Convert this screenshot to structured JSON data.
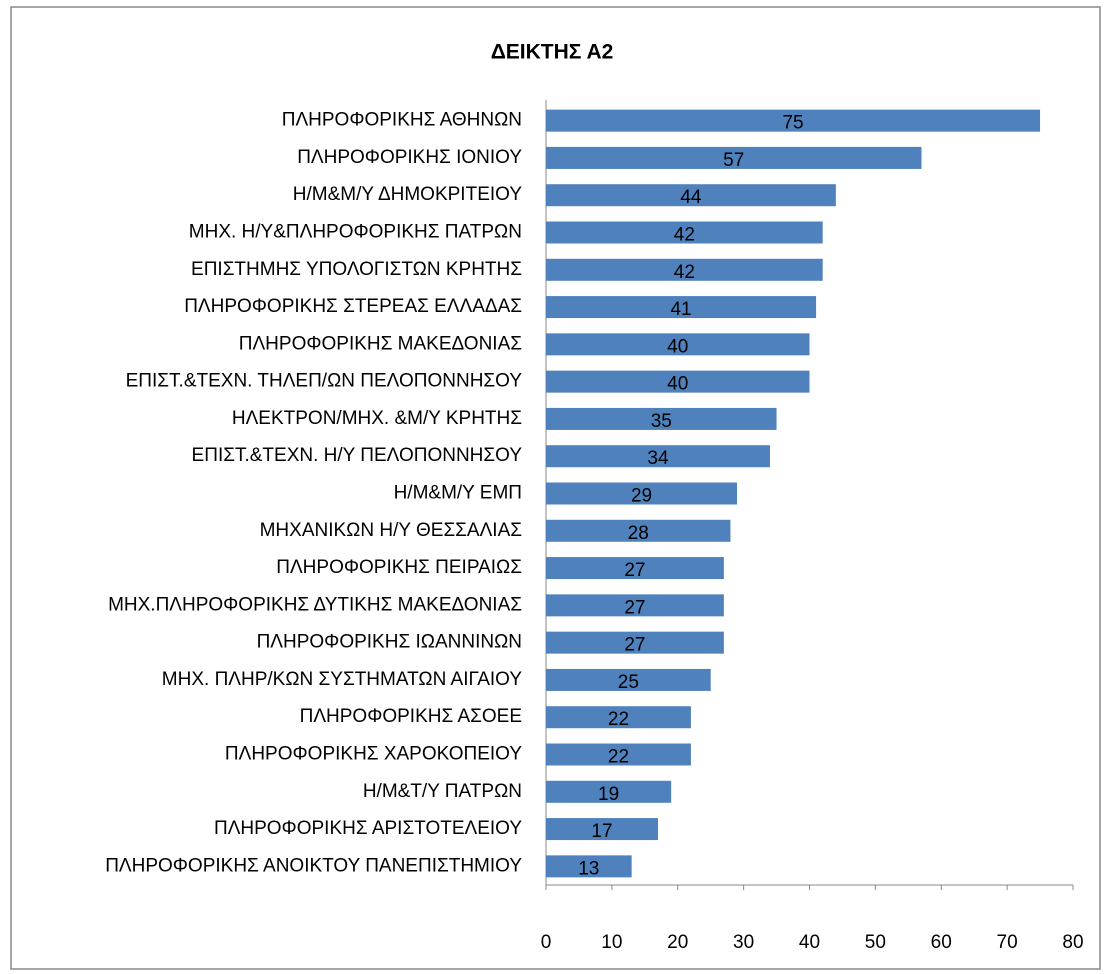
{
  "chart_data": {
    "type": "bar",
    "orientation": "horizontal",
    "title": "ΔΕΙΚΤΗΣ Α2",
    "categories": [
      "ΠΛΗΡΟΦΟΡΙΚΗΣ ΑΘΗΝΩΝ",
      "ΠΛΗΡΟΦΟΡΙΚΗΣ ΙΟΝΙΟΥ",
      "Η/Μ&Μ/Υ ΔΗΜΟΚΡΙΤΕΙΟΥ",
      "ΜΗΧ. Η/Υ&ΠΛΗΡΟΦΟΡΙΚΗΣ ΠΑΤΡΩΝ",
      "ΕΠΙΣΤΗΜΗΣ ΥΠΟΛΟΓΙΣΤΩΝ ΚΡΗΤΗΣ",
      "ΠΛΗΡΟΦΟΡΙΚΗΣ ΣΤΕΡΕΑΣ ΕΛΛΑΔΑΣ",
      "ΠΛΗΡΟΦΟΡΙΚΗΣ ΜΑΚΕΔΟΝΙΑΣ",
      "ΕΠΙΣΤ.&ΤΕΧΝ. ΤΗΛΕΠ/ΩΝ ΠΕΛΟΠΟΝΝΗΣΟΥ",
      "ΗΛΕΚΤΡΟΝ/ΜΗΧ. &Μ/Υ ΚΡΗΤΗΣ",
      "ΕΠΙΣΤ.&ΤΕΧΝ. Η/Υ ΠΕΛΟΠΟΝΝΗΣΟΥ",
      "Η/Μ&Μ/Υ ΕΜΠ",
      "ΜΗΧΑΝΙΚΩΝ Η/Υ ΘΕΣΣΑΛΙΑΣ",
      "ΠΛΗΡΟΦΟΡΙΚΗΣ ΠΕΙΡΑΙΩΣ",
      "ΜΗΧ.ΠΛΗΡΟΦΟΡΙΚΗΣ ΔΥΤΙΚΗΣ ΜΑΚΕΔΟΝΙΑΣ",
      "ΠΛΗΡΟΦΟΡΙΚΗΣ ΙΩΑΝΝΙΝΩΝ",
      "ΜΗΧ. ΠΛΗΡ/ΚΩΝ ΣΥΣΤΗΜΑΤΩΝ ΑΙΓΑΙΟΥ",
      "ΠΛΗΡΟΦΟΡΙΚΗΣ ΑΣΟΕΕ",
      "ΠΛΗΡΟΦΟΡΙΚΗΣ ΧΑΡΟΚΟΠΕΙΟΥ",
      "Η/Μ&Τ/Υ ΠΑΤΡΩΝ",
      "ΠΛΗΡΟΦΟΡΙΚΗΣ ΑΡΙΣΤΟΤΕΛΕΙΟΥ",
      "ΠΛΗΡΟΦΟΡΙΚΗΣ ΑΝΟΙΚΤΟΥ ΠΑΝΕΠΙΣΤΗΜΙΟΥ"
    ],
    "values": [
      75,
      57,
      44,
      42,
      42,
      41,
      40,
      40,
      35,
      34,
      29,
      28,
      27,
      27,
      27,
      25,
      22,
      22,
      19,
      17,
      13
    ],
    "color": "#4f81bd",
    "xlim": [
      0,
      80
    ],
    "xticks": [
      0,
      10,
      20,
      30,
      40,
      50,
      60,
      70,
      80
    ],
    "grid": false
  }
}
